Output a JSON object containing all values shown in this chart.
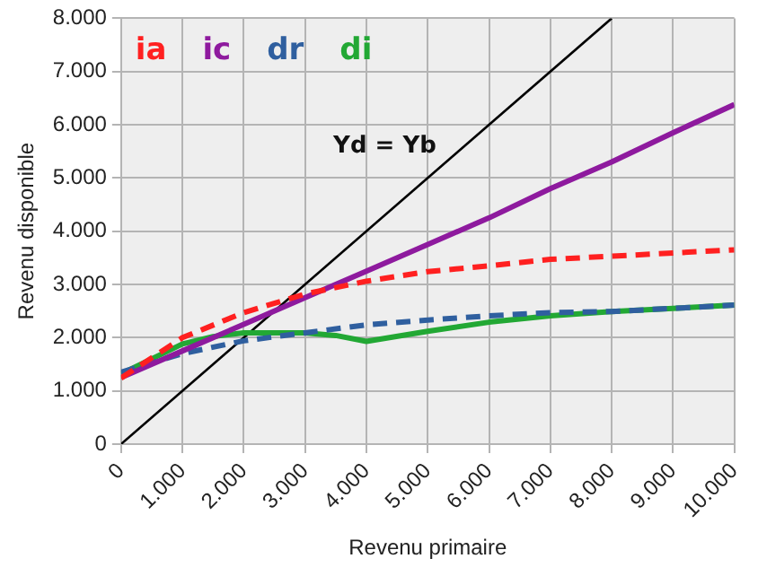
{
  "chart_data": {
    "type": "line",
    "xlabel": "Revenu primaire",
    "ylabel": "Revenu disponible",
    "xlim": [
      0,
      10000
    ],
    "ylim": [
      0,
      8000
    ],
    "xticks": [
      0,
      {
        "value": 1000,
        "label": "1.000"
      },
      {
        "value": 2000,
        "label": "2.000"
      },
      {
        "value": 3000,
        "label": "3.000"
      },
      {
        "value": 4000,
        "label": "4.000"
      },
      {
        "value": 5000,
        "label": "5.000"
      },
      {
        "value": 6000,
        "label": "6.000"
      },
      {
        "value": 7000,
        "label": "7.000"
      },
      {
        "value": 8000,
        "label": "8.000"
      },
      {
        "value": 9000,
        "label": "9.000"
      },
      {
        "value": 10000,
        "label": "10.000"
      }
    ],
    "yticks": [
      0,
      {
        "value": 1000,
        "label": "1.000"
      },
      {
        "value": 2000,
        "label": "2.000"
      },
      {
        "value": 3000,
        "label": "3.000"
      },
      {
        "value": 4000,
        "label": "4.000"
      },
      {
        "value": 5000,
        "label": "5.000"
      },
      {
        "value": 6000,
        "label": "6.000"
      },
      {
        "value": 7000,
        "label": "7.000"
      },
      {
        "value": 8000,
        "label": "8.000"
      }
    ],
    "grid": true,
    "legend": "top left",
    "marker": "none",
    "series": [
      {
        "name": "ia",
        "color": "#ff2020",
        "line_style": "dashed",
        "x": [
          0,
          1000,
          2000,
          3000,
          4000,
          5000,
          6000,
          7000,
          8000,
          9000,
          10000
        ],
        "values": [
          1240,
          2000,
          2470,
          2820,
          3060,
          3240,
          3350,
          3470,
          3530,
          3590,
          3650
        ]
      },
      {
        "name": "ic",
        "color": "#8e1a9e",
        "line_style": "solid",
        "x": [
          0,
          1000,
          2000,
          3000,
          4000,
          5000,
          6000,
          7000,
          8000,
          9000,
          10000
        ],
        "values": [
          1250,
          1750,
          2250,
          2750,
          3250,
          3750,
          4250,
          4800,
          5300,
          5850,
          6380
        ]
      },
      {
        "name": "dr",
        "color": "#2f5f9f",
        "line_style": "dashed",
        "x": [
          0,
          1000,
          2000,
          3000,
          4000,
          5000,
          6000,
          7000,
          8000,
          9000,
          10000
        ],
        "values": [
          1350,
          1700,
          1940,
          2090,
          2240,
          2330,
          2410,
          2470,
          2490,
          2550,
          2610
        ]
      },
      {
        "name": "di",
        "color": "#22a834",
        "line_style": "solid",
        "x": [
          0,
          1000,
          1500,
          2000,
          3000,
          3500,
          4000,
          5000,
          6000,
          7000,
          8000,
          9000,
          10000
        ],
        "values": [
          1320,
          1880,
          2020,
          2090,
          2090,
          2040,
          1930,
          2120,
          2290,
          2410,
          2490,
          2550,
          2610
        ]
      },
      {
        "color": "#000000",
        "line_style": "solid",
        "x": [
          0,
          8000
        ],
        "values": [
          0,
          8000
        ]
      }
    ],
    "annotations": [
      "Yd = Yb"
    ]
  }
}
